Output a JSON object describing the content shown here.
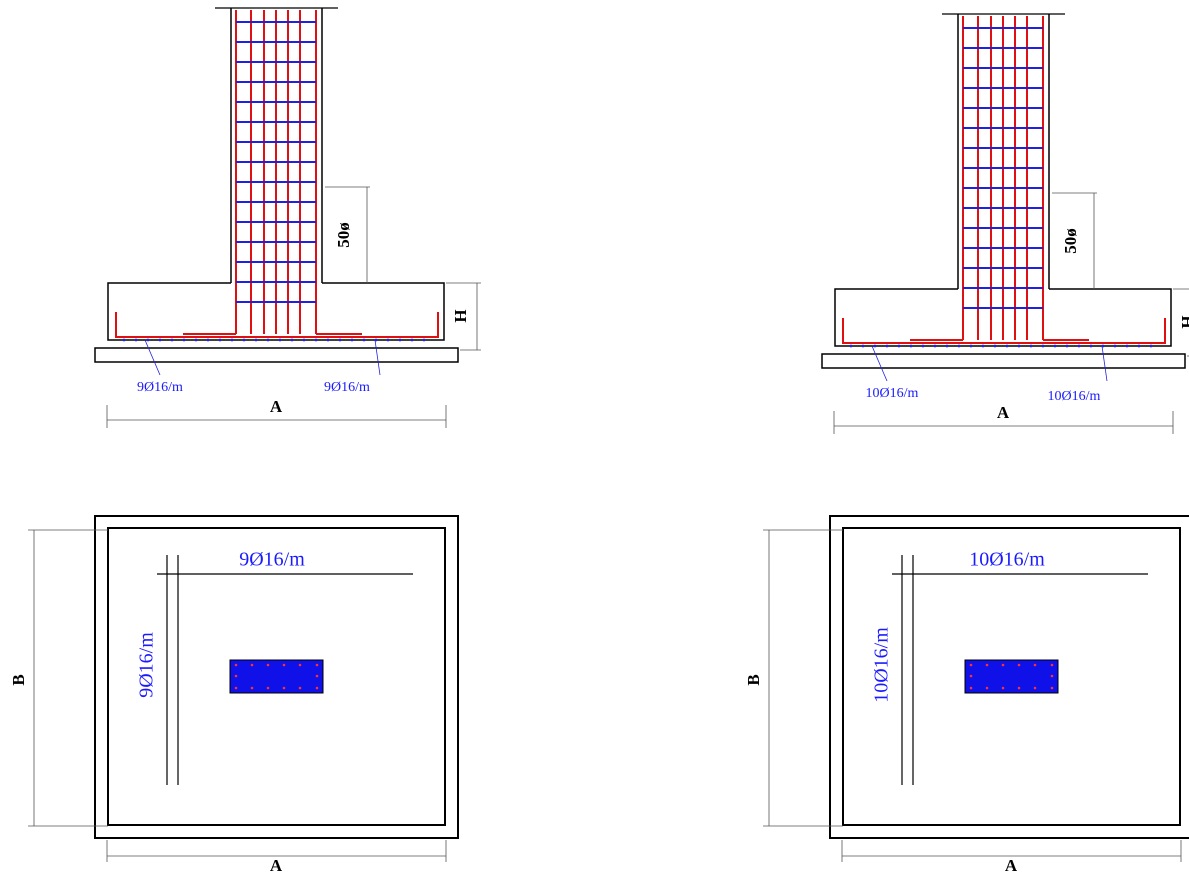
{
  "details": [
    {
      "section": {
        "dim_label": "50ø",
        "height_label": "H",
        "bar_left": "9Ø16/m",
        "bar_right": "9Ø16/m",
        "width_label": "A"
      },
      "plan": {
        "bar_x": "9Ø16/m",
        "bar_y": "9Ø16/m",
        "length_label": "B",
        "width_label": "A"
      }
    },
    {
      "section": {
        "dim_label": "50ø",
        "height_label": "H",
        "bar_left": "10Ø16/m",
        "bar_right": "10Ø16/m",
        "width_label": "A"
      },
      "plan": {
        "bar_x": "10Ø16/m",
        "bar_y": "10Ø16/m",
        "length_label": "B",
        "width_label": "A"
      }
    }
  ]
}
